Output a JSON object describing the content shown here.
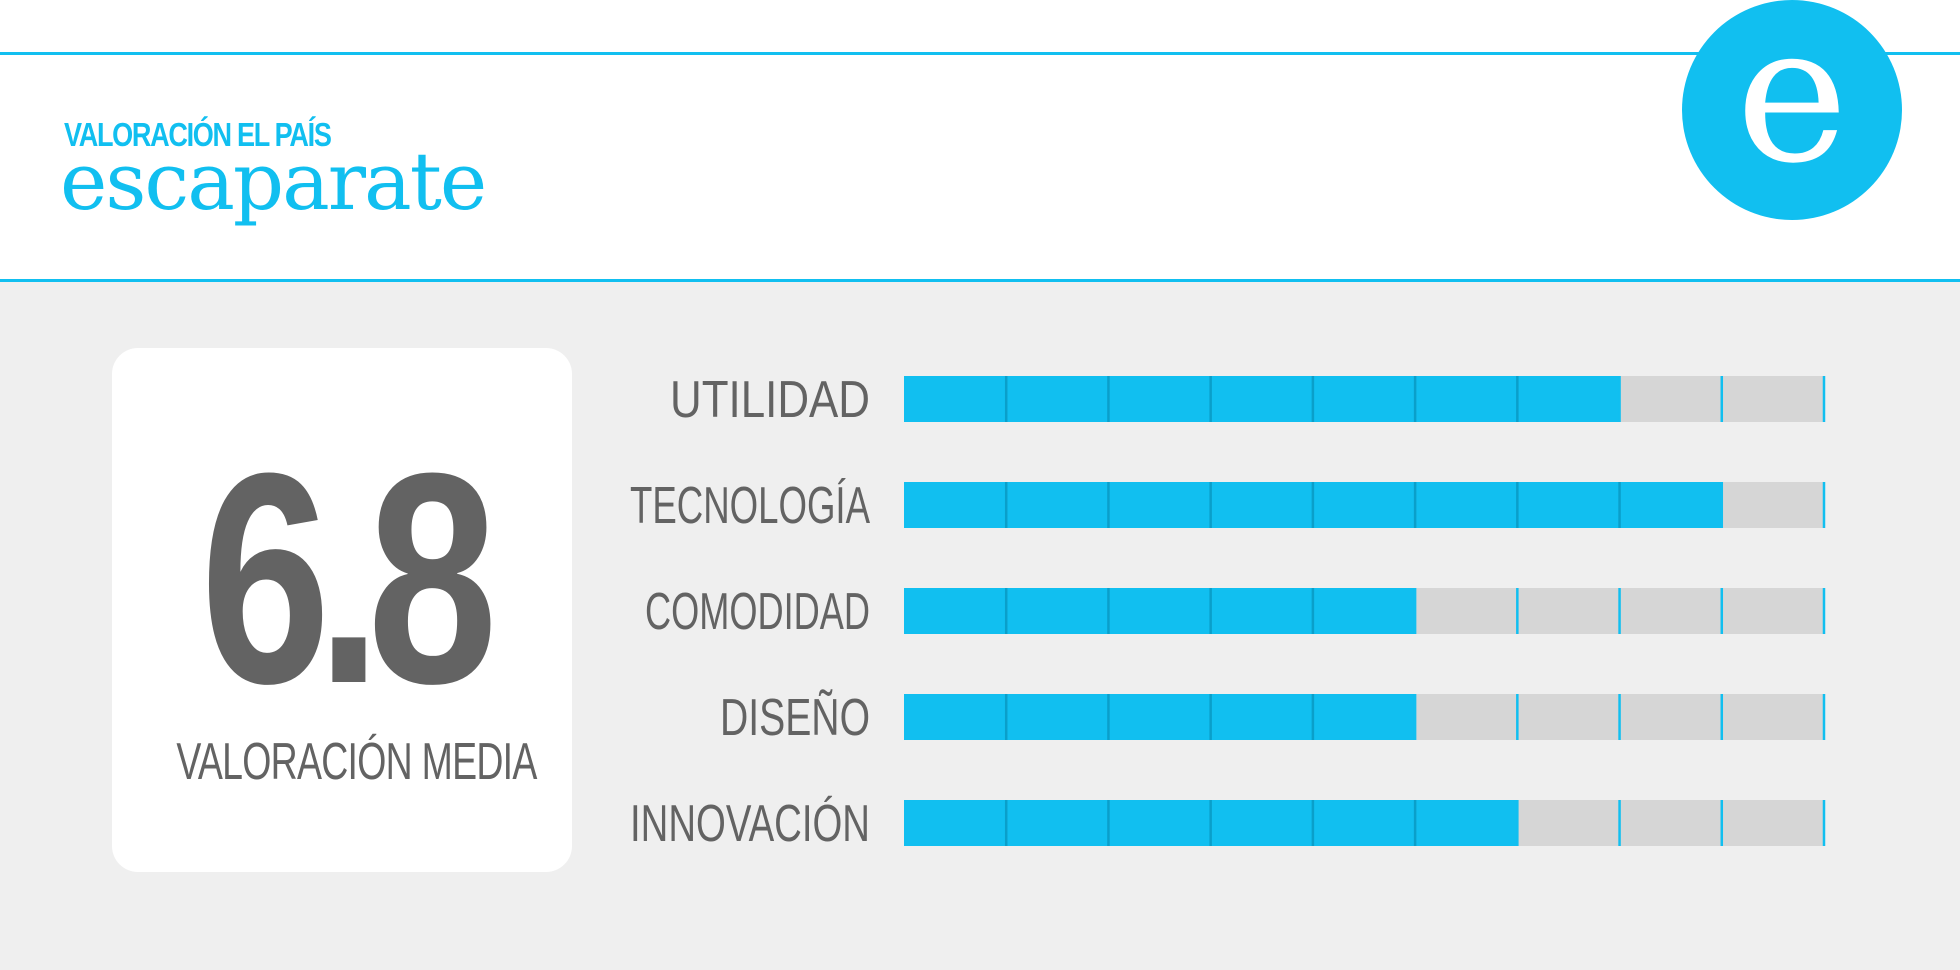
{
  "header": {
    "kicker": "VALORACIÓN EL PAÍS",
    "brand": "escaparate",
    "logo_letter": "e"
  },
  "score": {
    "value": "6.8",
    "label": "VALORACIÓN MEDIA"
  },
  "colors": {
    "accent": "#11bff0",
    "track": "#d6d6d6",
    "panel": "#efefef",
    "text": "#636363"
  },
  "chart_data": {
    "type": "bar",
    "orientation": "horizontal",
    "categories": [
      "UTILIDAD",
      "TECNOLOGÍA",
      "COMODIDAD",
      "DISEÑO",
      "INNOVACIÓN"
    ],
    "values": [
      7,
      8,
      5,
      5,
      6
    ],
    "xlim": [
      0,
      9
    ],
    "segments": 9,
    "grid": false
  }
}
